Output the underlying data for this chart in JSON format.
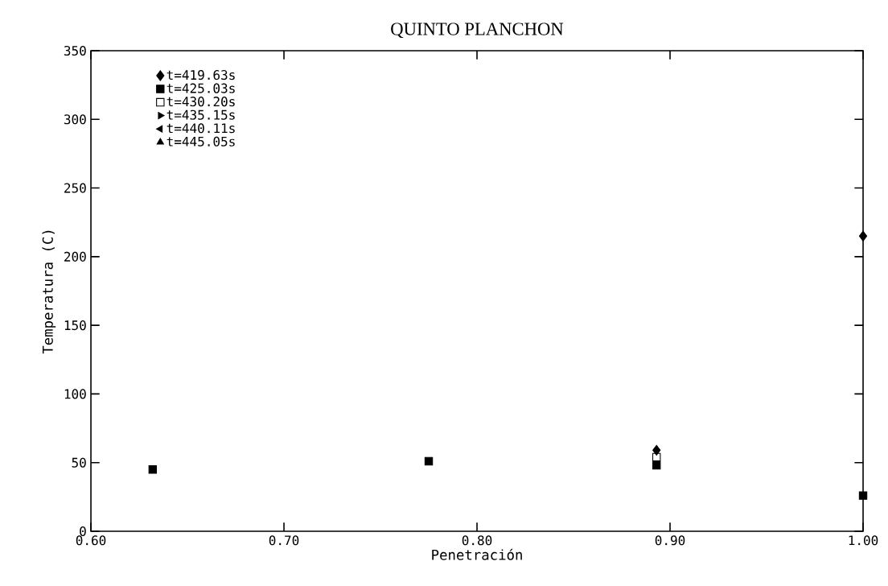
{
  "chart_data": {
    "type": "scatter",
    "title": "QUINTO PLANCHON",
    "xlabel": "Penetración",
    "ylabel": "Temperatura (C)",
    "x": [
      0.632,
      0.775,
      0.893,
      1.0
    ],
    "series": [
      {
        "name": "t=419.63s",
        "color": "#000000",
        "marker": "diamond",
        "values": [
          null,
          null,
          59,
          215
        ]
      },
      {
        "name": "t=425.03s",
        "color": "#000000",
        "marker": "square",
        "values": [
          45,
          51,
          48,
          26
        ]
      },
      {
        "name": "t=430.20s",
        "color": "#000000",
        "marker": "square_open",
        "values": [
          null,
          null,
          54,
          null
        ]
      },
      {
        "name": "t=435.15s",
        "color": "#000000",
        "marker": "triangle_right",
        "values": [
          null,
          null,
          null,
          null
        ]
      },
      {
        "name": "t=440.11s",
        "color": "#000000",
        "marker": "triangle_left",
        "values": [
          null,
          null,
          null,
          null
        ]
      },
      {
        "name": "t=445.05s",
        "color": "#000000",
        "marker": "triangle",
        "values": [
          null,
          null,
          null,
          null
        ]
      }
    ],
    "xlim": [
      0.6,
      1.0
    ],
    "xticks": [
      {
        "value": 0.6,
        "label": "0.60"
      },
      {
        "value": 0.7,
        "label": "0.70"
      },
      {
        "value": 0.8,
        "label": "0.80"
      },
      {
        "value": 0.9,
        "label": "0.90"
      },
      {
        "value": 1.0,
        "label": "1.00"
      }
    ],
    "ylim": [
      0,
      350
    ],
    "yticks": [
      0,
      50,
      100,
      150,
      200,
      250,
      300,
      350
    ],
    "grid": false,
    "legend": "top left"
  }
}
